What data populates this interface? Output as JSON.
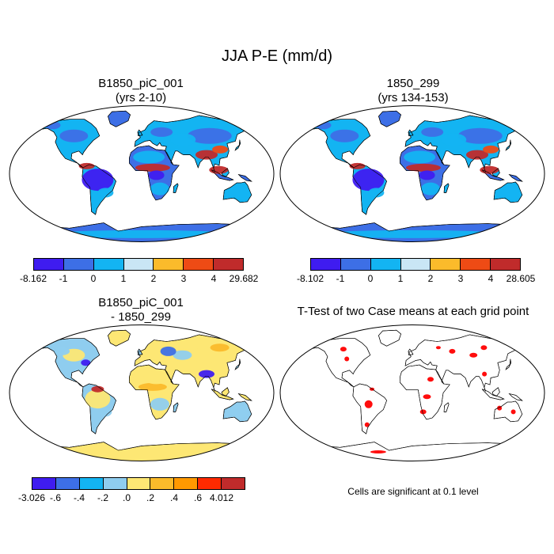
{
  "main_title": "JJA P-E (mm/d)",
  "panels": [
    {
      "id": "p1",
      "title_line1": "B1850_piC_001",
      "title_line2": "(yrs 2-10)",
      "kind": "field"
    },
    {
      "id": "p2",
      "title_line1": "1850_299",
      "title_line2": "(yrs 134-153)",
      "kind": "field"
    },
    {
      "id": "p3",
      "title_line1": "B1850_piC_001",
      "title_line2": "- 1850_299",
      "kind": "diff"
    },
    {
      "id": "p4",
      "title_line1": "T-Test of two Case means at each grid point",
      "title_line2": "",
      "kind": "ttest"
    }
  ],
  "colorbars": [
    {
      "id": "cb1",
      "labels": [
        "-8.162",
        "-1",
        "0",
        "1",
        "2",
        "3",
        "4",
        "29.682"
      ],
      "colors": [
        "#3f1cf0",
        "#3d6fe6",
        "#13b4f2",
        "#c9e6f5",
        "#fbbb2b",
        "#ee4b15",
        "#c02b2b"
      ]
    },
    {
      "id": "cb2",
      "labels": [
        "-8.102",
        "-1",
        "0",
        "1",
        "2",
        "3",
        "4",
        "28.605"
      ],
      "colors": [
        "#3f1cf0",
        "#3d6fe6",
        "#13b4f2",
        "#c9e6f5",
        "#fbbb2b",
        "#ee4b15",
        "#c02b2b"
      ]
    },
    {
      "id": "cb3",
      "labels": [
        "-3.026",
        "-.6",
        "-.4",
        "-.2",
        ".0",
        ".2",
        ".4",
        ".6",
        "4.012"
      ],
      "colors": [
        "#3f1cf0",
        "#3d6fe6",
        "#13b4f2",
        "#8fcdef",
        "#fde774",
        "#fbbb2b",
        "#ff9900",
        "#ff2a00",
        "#c02b2b"
      ]
    }
  ],
  "significance_note": "Cells are significant at 0.1 level",
  "chart_data": [
    {
      "type": "heatmap",
      "title": "B1850_piC_001 (yrs 2-10)",
      "variable": "JJA P-E",
      "units": "mm/d",
      "levels": [
        -8.162,
        -1,
        0,
        1,
        2,
        3,
        4,
        29.682
      ]
    },
    {
      "type": "heatmap",
      "title": "1850_299 (yrs 134-153)",
      "variable": "JJA P-E",
      "units": "mm/d",
      "levels": [
        -8.102,
        -1,
        0,
        1,
        2,
        3,
        4,
        28.605
      ]
    },
    {
      "type": "heatmap",
      "title": "B1850_piC_001 - 1850_299",
      "variable": "JJA P-E difference",
      "units": "mm/d",
      "levels": [
        -3.026,
        -0.6,
        -0.4,
        -0.2,
        0.0,
        0.2,
        0.4,
        0.6,
        4.012
      ]
    },
    {
      "type": "heatmap",
      "title": "T-Test of two Case means at each grid point",
      "significance_level": 0.1
    }
  ]
}
